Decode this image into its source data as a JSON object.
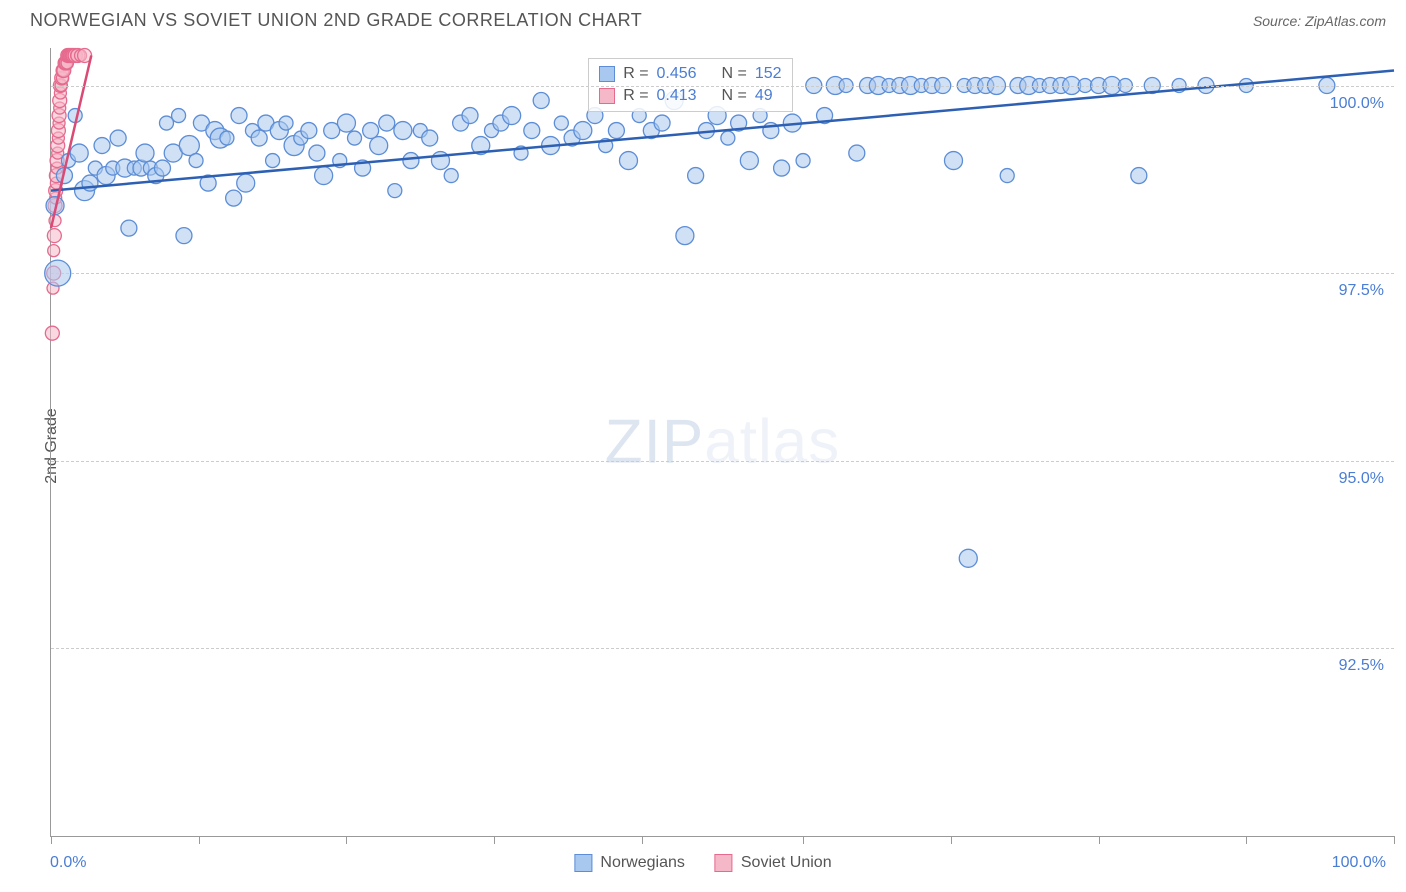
{
  "title": "NORWEGIAN VS SOVIET UNION 2ND GRADE CORRELATION CHART",
  "source": "Source: ZipAtlas.com",
  "ylabel": "2nd Grade",
  "watermark_bold": "ZIP",
  "watermark_thin": "atlas",
  "chart": {
    "type": "scatter",
    "xlim": [
      0,
      100
    ],
    "ylim": [
      90,
      100.5
    ],
    "yticks": [
      92.5,
      95.0,
      97.5,
      100.0
    ],
    "ytick_labels": [
      "92.5%",
      "95.0%",
      "97.5%",
      "100.0%"
    ],
    "xtick_positions": [
      0,
      11,
      22,
      33,
      44,
      56,
      67,
      78,
      89,
      100
    ],
    "xlabel_min": "0.0%",
    "xlabel_max": "100.0%",
    "grid_color": "#cccccc",
    "background_color": "#ffffff",
    "axis_color": "#999999",
    "series": [
      {
        "name": "Norwegians",
        "color_fill": "#a9c8ef",
        "color_stroke": "#5c8dd6",
        "line_color": "#2d5fb3",
        "r_value": "0.456",
        "n_value": "152",
        "trend_line": {
          "x1": 0,
          "y1": 98.6,
          "x2": 100,
          "y2": 100.2
        },
        "points": [
          {
            "x": 0.3,
            "y": 98.4,
            "r": 9
          },
          {
            "x": 0.5,
            "y": 97.5,
            "r": 13
          },
          {
            "x": 1,
            "y": 98.8,
            "r": 8
          },
          {
            "x": 1.3,
            "y": 99.0,
            "r": 7
          },
          {
            "x": 1.8,
            "y": 99.6,
            "r": 7
          },
          {
            "x": 2.1,
            "y": 99.1,
            "r": 9
          },
          {
            "x": 2.5,
            "y": 98.6,
            "r": 10
          },
          {
            "x": 2.9,
            "y": 98.7,
            "r": 8
          },
          {
            "x": 3.3,
            "y": 98.9,
            "r": 7
          },
          {
            "x": 3.8,
            "y": 99.2,
            "r": 8
          },
          {
            "x": 4.1,
            "y": 98.8,
            "r": 9
          },
          {
            "x": 4.6,
            "y": 98.9,
            "r": 7
          },
          {
            "x": 5.0,
            "y": 99.3,
            "r": 8
          },
          {
            "x": 5.5,
            "y": 98.9,
            "r": 9
          },
          {
            "x": 5.8,
            "y": 98.1,
            "r": 8
          },
          {
            "x": 6.2,
            "y": 98.9,
            "r": 7
          },
          {
            "x": 6.7,
            "y": 98.9,
            "r": 8
          },
          {
            "x": 7.0,
            "y": 99.1,
            "r": 9
          },
          {
            "x": 7.4,
            "y": 98.9,
            "r": 7
          },
          {
            "x": 7.8,
            "y": 98.8,
            "r": 8
          },
          {
            "x": 8.3,
            "y": 98.9,
            "r": 8
          },
          {
            "x": 8.6,
            "y": 99.5,
            "r": 7
          },
          {
            "x": 9.1,
            "y": 99.1,
            "r": 9
          },
          {
            "x": 9.5,
            "y": 99.6,
            "r": 7
          },
          {
            "x": 9.9,
            "y": 98.0,
            "r": 8
          },
          {
            "x": 10.3,
            "y": 99.2,
            "r": 10
          },
          {
            "x": 10.8,
            "y": 99.0,
            "r": 7
          },
          {
            "x": 11.2,
            "y": 99.5,
            "r": 8
          },
          {
            "x": 11.7,
            "y": 98.7,
            "r": 8
          },
          {
            "x": 12.2,
            "y": 99.4,
            "r": 9
          },
          {
            "x": 12.6,
            "y": 99.3,
            "r": 10
          },
          {
            "x": 13.1,
            "y": 99.3,
            "r": 7
          },
          {
            "x": 13.6,
            "y": 98.5,
            "r": 8
          },
          {
            "x": 14.0,
            "y": 99.6,
            "r": 8
          },
          {
            "x": 14.5,
            "y": 98.7,
            "r": 9
          },
          {
            "x": 15.0,
            "y": 99.4,
            "r": 7
          },
          {
            "x": 15.5,
            "y": 99.3,
            "r": 8
          },
          {
            "x": 16.0,
            "y": 99.5,
            "r": 8
          },
          {
            "x": 16.5,
            "y": 99.0,
            "r": 7
          },
          {
            "x": 17.0,
            "y": 99.4,
            "r": 9
          },
          {
            "x": 17.5,
            "y": 99.5,
            "r": 7
          },
          {
            "x": 18.1,
            "y": 99.2,
            "r": 10
          },
          {
            "x": 18.6,
            "y": 99.3,
            "r": 7
          },
          {
            "x": 19.2,
            "y": 99.4,
            "r": 8
          },
          {
            "x": 19.8,
            "y": 99.1,
            "r": 8
          },
          {
            "x": 20.3,
            "y": 98.8,
            "r": 9
          },
          {
            "x": 20.9,
            "y": 99.4,
            "r": 8
          },
          {
            "x": 21.5,
            "y": 99.0,
            "r": 7
          },
          {
            "x": 22.0,
            "y": 99.5,
            "r": 9
          },
          {
            "x": 22.6,
            "y": 99.3,
            "r": 7
          },
          {
            "x": 23.2,
            "y": 98.9,
            "r": 8
          },
          {
            "x": 23.8,
            "y": 99.4,
            "r": 8
          },
          {
            "x": 24.4,
            "y": 99.2,
            "r": 9
          },
          {
            "x": 25.0,
            "y": 99.5,
            "r": 8
          },
          {
            "x": 25.6,
            "y": 98.6,
            "r": 7
          },
          {
            "x": 26.2,
            "y": 99.4,
            "r": 9
          },
          {
            "x": 26.8,
            "y": 99.0,
            "r": 8
          },
          {
            "x": 27.5,
            "y": 99.4,
            "r": 7
          },
          {
            "x": 28.2,
            "y": 99.3,
            "r": 8
          },
          {
            "x": 29.0,
            "y": 99.0,
            "r": 9
          },
          {
            "x": 29.8,
            "y": 98.8,
            "r": 7
          },
          {
            "x": 30.5,
            "y": 99.5,
            "r": 8
          },
          {
            "x": 31.2,
            "y": 99.6,
            "r": 8
          },
          {
            "x": 32.0,
            "y": 99.2,
            "r": 9
          },
          {
            "x": 32.8,
            "y": 99.4,
            "r": 7
          },
          {
            "x": 33.5,
            "y": 99.5,
            "r": 8
          },
          {
            "x": 34.3,
            "y": 99.6,
            "r": 9
          },
          {
            "x": 35.0,
            "y": 99.1,
            "r": 7
          },
          {
            "x": 35.8,
            "y": 99.4,
            "r": 8
          },
          {
            "x": 36.5,
            "y": 99.8,
            "r": 8
          },
          {
            "x": 37.2,
            "y": 99.2,
            "r": 9
          },
          {
            "x": 38.0,
            "y": 99.5,
            "r": 7
          },
          {
            "x": 38.8,
            "y": 99.3,
            "r": 8
          },
          {
            "x": 39.6,
            "y": 99.4,
            "r": 9
          },
          {
            "x": 40.5,
            "y": 99.6,
            "r": 8
          },
          {
            "x": 41.3,
            "y": 99.2,
            "r": 7
          },
          {
            "x": 42.1,
            "y": 99.4,
            "r": 8
          },
          {
            "x": 43.0,
            "y": 99.0,
            "r": 9
          },
          {
            "x": 43.8,
            "y": 99.6,
            "r": 7
          },
          {
            "x": 44.7,
            "y": 99.4,
            "r": 8
          },
          {
            "x": 45.5,
            "y": 99.5,
            "r": 8
          },
          {
            "x": 46.4,
            "y": 99.8,
            "r": 9
          },
          {
            "x": 47.2,
            "y": 98.0,
            "r": 9
          },
          {
            "x": 48.0,
            "y": 98.8,
            "r": 8
          },
          {
            "x": 48.8,
            "y": 99.4,
            "r": 8
          },
          {
            "x": 49.6,
            "y": 99.6,
            "r": 9
          },
          {
            "x": 50.4,
            "y": 99.3,
            "r": 7
          },
          {
            "x": 51.2,
            "y": 99.5,
            "r": 8
          },
          {
            "x": 52.0,
            "y": 99.0,
            "r": 9
          },
          {
            "x": 52.8,
            "y": 99.6,
            "r": 7
          },
          {
            "x": 53.6,
            "y": 99.4,
            "r": 8
          },
          {
            "x": 54.4,
            "y": 98.9,
            "r": 8
          },
          {
            "x": 55.2,
            "y": 99.5,
            "r": 9
          },
          {
            "x": 56.0,
            "y": 99.0,
            "r": 7
          },
          {
            "x": 56.8,
            "y": 100.0,
            "r": 8
          },
          {
            "x": 57.6,
            "y": 99.6,
            "r": 8
          },
          {
            "x": 58.4,
            "y": 100.0,
            "r": 9
          },
          {
            "x": 59.2,
            "y": 100.0,
            "r": 7
          },
          {
            "x": 60.0,
            "y": 99.1,
            "r": 8
          },
          {
            "x": 60.8,
            "y": 100.0,
            "r": 8
          },
          {
            "x": 61.6,
            "y": 100.0,
            "r": 9
          },
          {
            "x": 62.4,
            "y": 100.0,
            "r": 7
          },
          {
            "x": 63.2,
            "y": 100.0,
            "r": 8
          },
          {
            "x": 64.0,
            "y": 100.0,
            "r": 9
          },
          {
            "x": 64.8,
            "y": 100.0,
            "r": 7
          },
          {
            "x": 65.6,
            "y": 100.0,
            "r": 8
          },
          {
            "x": 66.4,
            "y": 100.0,
            "r": 8
          },
          {
            "x": 67.2,
            "y": 99.0,
            "r": 9
          },
          {
            "x": 68.0,
            "y": 100.0,
            "r": 7
          },
          {
            "x": 68.3,
            "y": 93.7,
            "r": 9
          },
          {
            "x": 68.8,
            "y": 100.0,
            "r": 8
          },
          {
            "x": 69.6,
            "y": 100.0,
            "r": 8
          },
          {
            "x": 70.4,
            "y": 100.0,
            "r": 9
          },
          {
            "x": 71.2,
            "y": 98.8,
            "r": 7
          },
          {
            "x": 72.0,
            "y": 100.0,
            "r": 8
          },
          {
            "x": 72.8,
            "y": 100.0,
            "r": 9
          },
          {
            "x": 73.6,
            "y": 100.0,
            "r": 7
          },
          {
            "x": 74.4,
            "y": 100.0,
            "r": 8
          },
          {
            "x": 75.2,
            "y": 100.0,
            "r": 8
          },
          {
            "x": 76.0,
            "y": 100.0,
            "r": 9
          },
          {
            "x": 77.0,
            "y": 100.0,
            "r": 7
          },
          {
            "x": 78.0,
            "y": 100.0,
            "r": 8
          },
          {
            "x": 79.0,
            "y": 100.0,
            "r": 9
          },
          {
            "x": 80.0,
            "y": 100.0,
            "r": 7
          },
          {
            "x": 81.0,
            "y": 98.8,
            "r": 8
          },
          {
            "x": 82.0,
            "y": 100.0,
            "r": 8
          },
          {
            "x": 84.0,
            "y": 100.0,
            "r": 7
          },
          {
            "x": 86.0,
            "y": 100.0,
            "r": 8
          },
          {
            "x": 89.0,
            "y": 100.0,
            "r": 7
          },
          {
            "x": 95.0,
            "y": 100.0,
            "r": 8
          }
        ]
      },
      {
        "name": "Soviet Union",
        "color_fill": "#f5b8c8",
        "color_stroke": "#e66a8e",
        "line_color": "#d94a75",
        "r_value": "0.413",
        "n_value": "49",
        "trend_line": {
          "x1": 0,
          "y1": 98.1,
          "x2": 3,
          "y2": 100.4
        },
        "points": [
          {
            "x": 0.1,
            "y": 96.7,
            "r": 7
          },
          {
            "x": 0.15,
            "y": 97.3,
            "r": 6
          },
          {
            "x": 0.2,
            "y": 97.5,
            "r": 7
          },
          {
            "x": 0.2,
            "y": 97.8,
            "r": 6
          },
          {
            "x": 0.25,
            "y": 98.0,
            "r": 7
          },
          {
            "x": 0.3,
            "y": 98.2,
            "r": 6
          },
          {
            "x": 0.3,
            "y": 98.4,
            "r": 7
          },
          {
            "x": 0.35,
            "y": 98.5,
            "r": 6
          },
          {
            "x": 0.35,
            "y": 98.6,
            "r": 7
          },
          {
            "x": 0.4,
            "y": 98.7,
            "r": 6
          },
          {
            "x": 0.4,
            "y": 98.8,
            "r": 7
          },
          {
            "x": 0.45,
            "y": 98.9,
            "r": 6
          },
          {
            "x": 0.45,
            "y": 99.0,
            "r": 7
          },
          {
            "x": 0.5,
            "y": 99.1,
            "r": 6
          },
          {
            "x": 0.5,
            "y": 99.2,
            "r": 7
          },
          {
            "x": 0.55,
            "y": 99.3,
            "r": 6
          },
          {
            "x": 0.55,
            "y": 99.4,
            "r": 7
          },
          {
            "x": 0.6,
            "y": 99.5,
            "r": 6
          },
          {
            "x": 0.6,
            "y": 99.6,
            "r": 7
          },
          {
            "x": 0.65,
            "y": 99.7,
            "r": 6
          },
          {
            "x": 0.65,
            "y": 99.8,
            "r": 7
          },
          {
            "x": 0.7,
            "y": 99.9,
            "r": 6
          },
          {
            "x": 0.7,
            "y": 100.0,
            "r": 7
          },
          {
            "x": 0.75,
            "y": 100.0,
            "r": 6
          },
          {
            "x": 0.8,
            "y": 100.1,
            "r": 7
          },
          {
            "x": 0.85,
            "y": 100.1,
            "r": 6
          },
          {
            "x": 0.9,
            "y": 100.2,
            "r": 7
          },
          {
            "x": 0.9,
            "y": 100.2,
            "r": 6
          },
          {
            "x": 0.95,
            "y": 100.2,
            "r": 7
          },
          {
            "x": 1.0,
            "y": 100.3,
            "r": 6
          },
          {
            "x": 1.05,
            "y": 100.3,
            "r": 7
          },
          {
            "x": 1.1,
            "y": 100.3,
            "r": 6
          },
          {
            "x": 1.15,
            "y": 100.3,
            "r": 7
          },
          {
            "x": 1.2,
            "y": 100.3,
            "r": 6
          },
          {
            "x": 1.25,
            "y": 100.4,
            "r": 7
          },
          {
            "x": 1.3,
            "y": 100.4,
            "r": 6
          },
          {
            "x": 1.35,
            "y": 100.4,
            "r": 7
          },
          {
            "x": 1.4,
            "y": 100.4,
            "r": 6
          },
          {
            "x": 1.45,
            "y": 100.4,
            "r": 7
          },
          {
            "x": 1.5,
            "y": 100.4,
            "r": 6
          },
          {
            "x": 1.55,
            "y": 100.4,
            "r": 7
          },
          {
            "x": 1.6,
            "y": 100.4,
            "r": 6
          },
          {
            "x": 1.65,
            "y": 100.4,
            "r": 7
          },
          {
            "x": 1.7,
            "y": 100.4,
            "r": 6
          },
          {
            "x": 1.8,
            "y": 100.4,
            "r": 7
          },
          {
            "x": 1.9,
            "y": 100.4,
            "r": 6
          },
          {
            "x": 2.0,
            "y": 100.4,
            "r": 7
          },
          {
            "x": 2.2,
            "y": 100.4,
            "r": 6
          },
          {
            "x": 2.5,
            "y": 100.4,
            "r": 7
          }
        ]
      }
    ]
  },
  "legend": {
    "series1": "Norwegians",
    "series2": "Soviet Union"
  },
  "stats_labels": {
    "r": "R =",
    "n": "N ="
  }
}
